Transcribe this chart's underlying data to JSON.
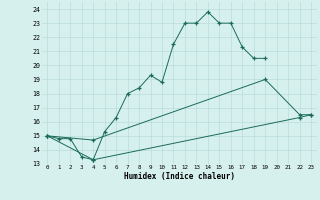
{
  "title": "",
  "xlabel": "Humidex (Indice chaleur)",
  "ylabel": "",
  "bg_color": "#d6f0ee",
  "line_color": "#1a6b5a",
  "grid_color": "#b8dcd8",
  "xlim": [
    -0.5,
    23.5
  ],
  "ylim": [
    13,
    24.5
  ],
  "yticks": [
    13,
    14,
    15,
    16,
    17,
    18,
    19,
    20,
    21,
    22,
    23,
    24
  ],
  "xticks": [
    0,
    1,
    2,
    3,
    4,
    5,
    6,
    7,
    8,
    9,
    10,
    11,
    12,
    13,
    14,
    15,
    16,
    17,
    18,
    19,
    20,
    21,
    22,
    23
  ],
  "series_connected": [
    {
      "x": [
        0,
        1,
        2,
        3,
        4,
        5,
        6,
        7,
        8,
        9,
        10,
        11,
        12,
        13,
        14,
        15,
        16,
        17,
        18,
        19
      ],
      "y": [
        15.0,
        14.8,
        14.8,
        13.5,
        13.3,
        15.3,
        16.3,
        18.0,
        18.4,
        19.3,
        18.8,
        21.5,
        23.0,
        23.0,
        23.8,
        23.0,
        23.0,
        21.3,
        20.5,
        20.5
      ]
    },
    {
      "x": [
        0,
        4,
        19,
        22,
        23
      ],
      "y": [
        15.0,
        14.7,
        19.0,
        16.5,
        16.5
      ]
    },
    {
      "x": [
        0,
        4,
        22,
        23
      ],
      "y": [
        15.0,
        13.3,
        16.3,
        16.5
      ]
    }
  ]
}
